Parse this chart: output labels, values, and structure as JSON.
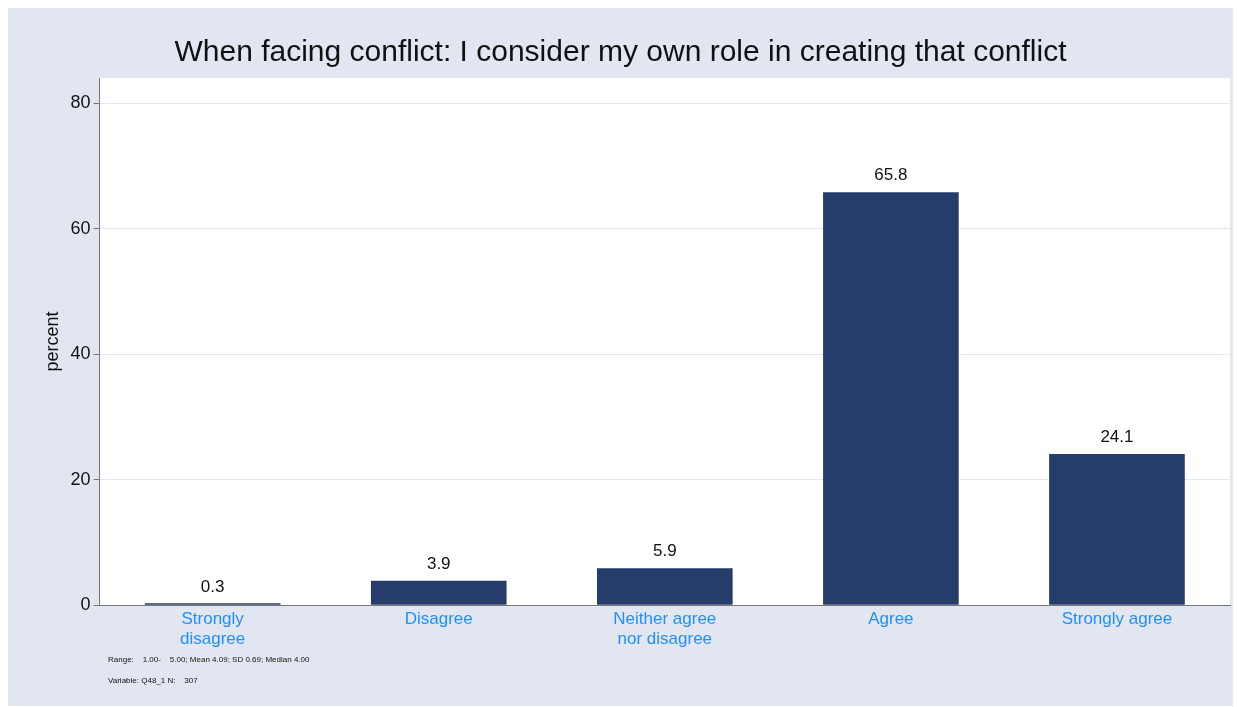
{
  "chart_data": {
    "type": "bar",
    "title": "When facing conflict: I consider my own role in creating that conflict",
    "ylabel": "percent",
    "categories": [
      "Strongly disagree",
      "Disagree",
      "Neither agree nor disagree",
      "Agree",
      "Strongly agree"
    ],
    "values": [
      0.3,
      3.9,
      5.9,
      65.8,
      24.1
    ],
    "color": "#263d6b",
    "ylim": [
      0,
      84
    ],
    "yticks": [
      0,
      20,
      40,
      60,
      80
    ],
    "grid": "y",
    "data_labels": true,
    "legend": false,
    "annotations": [
      "Range:    1.00-    5.00; Mean 4.09; SD 0.69; Median 4.00",
      "Variable: Q48_1 N:    307"
    ]
  }
}
